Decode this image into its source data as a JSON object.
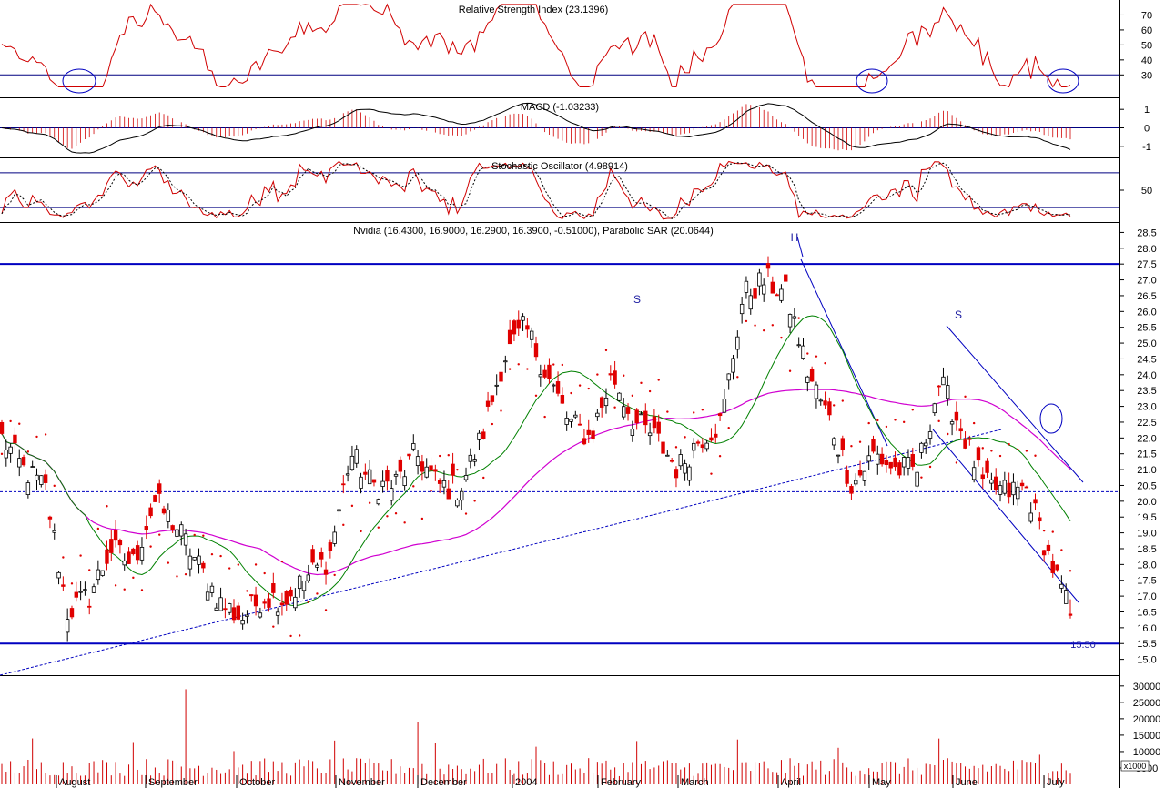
{
  "panels": {
    "rsi": {
      "title": "Relative Strength Index (23.1396)",
      "ticks": [
        30,
        40,
        50,
        60,
        70
      ],
      "levels": [
        30,
        70
      ],
      "ylim": [
        15,
        80
      ]
    },
    "macd": {
      "title": "MACD (-1.03233)",
      "ticks": [
        1,
        0,
        -1
      ],
      "ylim": [
        -1.6,
        1.6
      ]
    },
    "stoch": {
      "title": "Stochastic Oscillator (4.98914)",
      "ticks": [
        50
      ],
      "levels": [
        20,
        80
      ],
      "ylim": [
        -5,
        105
      ]
    },
    "price": {
      "title": "Nvidia (16.4300, 16.9000, 16.2900, 16.3900, -0.51000), Parabolic SAR (20.0644)",
      "ticks": [
        15.0,
        15.5,
        16.0,
        16.5,
        17.0,
        17.5,
        18.0,
        18.5,
        19.0,
        19.5,
        20.0,
        20.5,
        21.0,
        21.5,
        22.0,
        22.5,
        23.0,
        23.5,
        24.0,
        24.5,
        25.0,
        25.5,
        26.0,
        26.5,
        27.0,
        27.5,
        28.0,
        28.5
      ],
      "ylim": [
        14.5,
        28.8
      ],
      "support_label": "15.50"
    },
    "volume": {
      "unit_label": "x1000",
      "ticks": [
        5000,
        10000,
        15000,
        20000,
        25000,
        30000
      ],
      "ylim": [
        0,
        33000
      ]
    }
  },
  "months": [
    "August",
    "September",
    "October",
    "November",
    "December",
    "2004",
    "February",
    "March",
    "April",
    "May",
    "June",
    "July"
  ],
  "annotations": {
    "s_left": "S",
    "head": "H",
    "s_right": "S"
  },
  "colors": {
    "up": "#000000",
    "down": "#e00000",
    "rsi": "#d00000",
    "sar": "#e00000",
    "ma_short": "#008000",
    "ma_long": "#d000d0",
    "trend": "#0000c0",
    "grid": "#000080"
  },
  "chart_data": {
    "type": "candlestick",
    "ticker": "Nvidia",
    "last_bar": {
      "open": 16.43,
      "high": 16.9,
      "low": 16.29,
      "close": 16.39,
      "change": -0.51
    },
    "indicators": {
      "rsi": 23.1396,
      "macd": -1.03233,
      "stochastic": 4.98914,
      "parabolic_sar": 20.0644
    },
    "x_range": [
      "2003-07",
      "2004-07"
    ],
    "price_levels": {
      "resistance": 27.5,
      "support": 15.5,
      "reference": 20.3
    },
    "close_path": [
      [
        "2003-07",
        22.0
      ],
      [
        "2003-07",
        21.0
      ],
      [
        "2003-08",
        20.4
      ],
      [
        "2003-08",
        16.5
      ],
      [
        "2003-08",
        17.0
      ],
      [
        "2003-08",
        18.5
      ],
      [
        "2003-08",
        18.0
      ],
      [
        "2003-09",
        20.0
      ],
      [
        "2003-09",
        19.2
      ],
      [
        "2003-09",
        18.0
      ],
      [
        "2003-09",
        16.8
      ],
      [
        "2003-10",
        16.3
      ],
      [
        "2003-10",
        17.0
      ],
      [
        "2003-10",
        16.9
      ],
      [
        "2003-10",
        17.6
      ],
      [
        "2003-11",
        18.2
      ],
      [
        "2003-11",
        21.5
      ],
      [
        "2003-11",
        20.5
      ],
      [
        "2003-11",
        20.5
      ],
      [
        "2003-12",
        21.5
      ],
      [
        "2003-12",
        20.5
      ],
      [
        "2003-12",
        20.4
      ],
      [
        "2003-12",
        22.0
      ],
      [
        "2004-01",
        24.5
      ],
      [
        "2004-01",
        25.5
      ],
      [
        "2004-01",
        24.0
      ],
      [
        "2004-01",
        22.5
      ],
      [
        "2004-02",
        22.0
      ],
      [
        "2004-02",
        24.0
      ],
      [
        "2004-02",
        22.5
      ],
      [
        "2004-02",
        22.0
      ],
      [
        "2004-03",
        21.0
      ],
      [
        "2004-03",
        22.0
      ],
      [
        "2004-03",
        22.5
      ],
      [
        "2004-03",
        26.5
      ],
      [
        "2004-04",
        27.0
      ],
      [
        "2004-04",
        26.5
      ],
      [
        "2004-04",
        24.0
      ],
      [
        "2004-04",
        22.5
      ],
      [
        "2004-05",
        20.5
      ],
      [
        "2004-05",
        21.5
      ],
      [
        "2004-05",
        21.0
      ],
      [
        "2004-05",
        21.0
      ],
      [
        "2004-06",
        23.8
      ],
      [
        "2004-06",
        22.3
      ],
      [
        "2004-06",
        20.5
      ],
      [
        "2004-06",
        20.3
      ],
      [
        "2004-07",
        20.4
      ],
      [
        "2004-07",
        18.3
      ],
      [
        "2004-07",
        16.4
      ]
    ],
    "volume_peaks_x1000": [
      29000,
      19000
    ]
  }
}
